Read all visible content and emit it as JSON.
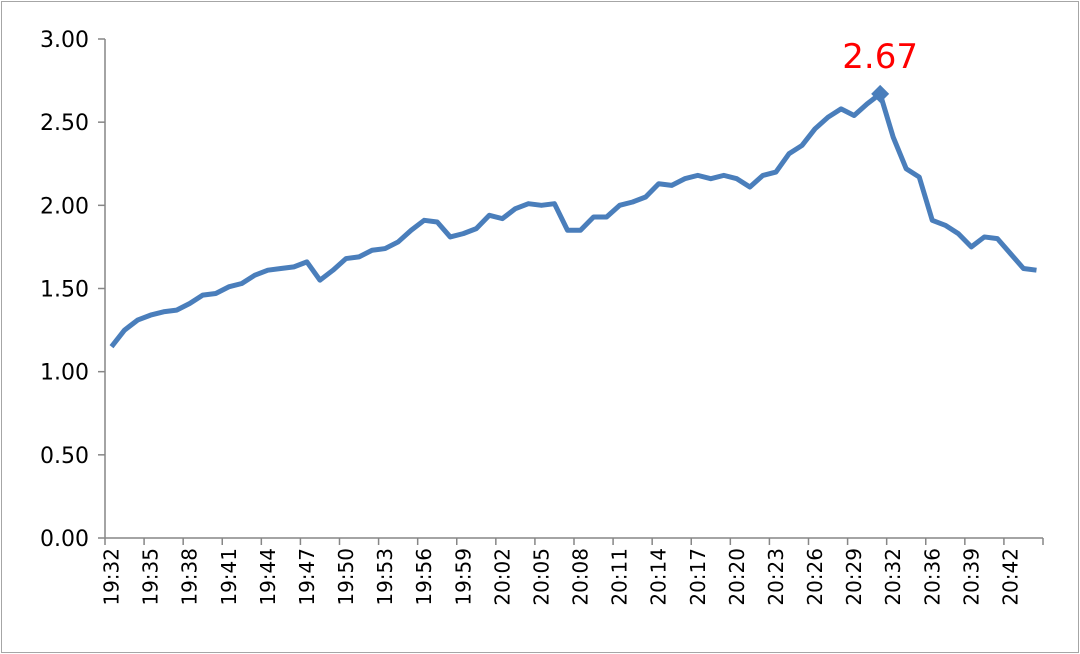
{
  "chart_data": {
    "type": "line",
    "categories": [
      "19:32",
      null,
      null,
      "19:35",
      null,
      null,
      "19:38",
      null,
      null,
      "19:41",
      null,
      null,
      "19:44",
      null,
      null,
      "19:47",
      null,
      null,
      "19:50",
      null,
      null,
      "19:53",
      null,
      null,
      "19:56",
      null,
      null,
      "19:59",
      null,
      null,
      "20:02",
      null,
      null,
      "20:05",
      null,
      null,
      "20:08",
      null,
      null,
      "20:11",
      null,
      null,
      "20:14",
      null,
      null,
      "20:17",
      null,
      null,
      "20:20",
      null,
      null,
      "20:23",
      null,
      null,
      "20:26",
      null,
      null,
      "20:29",
      null,
      null,
      "20:32",
      null,
      null,
      "20:36",
      null,
      null,
      "20:39",
      null,
      null,
      "20:42",
      null,
      null
    ],
    "series": [
      {
        "color": "#4a7ebb",
        "values": [
          1.15,
          1.25,
          1.31,
          1.34,
          1.36,
          1.37,
          1.41,
          1.46,
          1.47,
          1.51,
          1.53,
          1.58,
          1.61,
          1.62,
          1.63,
          1.66,
          1.55,
          1.61,
          1.68,
          1.69,
          1.73,
          1.74,
          1.78,
          1.85,
          1.91,
          1.9,
          1.81,
          1.83,
          1.86,
          1.94,
          1.92,
          1.98,
          2.01,
          2.0,
          2.01,
          1.85,
          1.85,
          1.93,
          1.93,
          2.0,
          2.02,
          2.05,
          2.13,
          2.12,
          2.16,
          2.18,
          2.16,
          2.18,
          2.16,
          2.11,
          2.18,
          2.2,
          2.31,
          2.36,
          2.46,
          2.53,
          2.58,
          2.54,
          2.61,
          2.67,
          2.41,
          2.22,
          2.17,
          1.91,
          1.88,
          1.83,
          1.75,
          1.81,
          1.8,
          1.71,
          1.62,
          1.61
        ],
        "value_labels": [
          null,
          null,
          null,
          null,
          null,
          null,
          null,
          null,
          null,
          null,
          null,
          null,
          null,
          null,
          null,
          null,
          null,
          null,
          null,
          null,
          null,
          null,
          null,
          null,
          null,
          null,
          null,
          null,
          null,
          null,
          null,
          null,
          null,
          null,
          null,
          null,
          null,
          null,
          null,
          null,
          null,
          null,
          null,
          null,
          null,
          null,
          null,
          null,
          null,
          null,
          null,
          null,
          null,
          null,
          null,
          null,
          null,
          null,
          null,
          "2.67",
          null,
          null,
          null,
          null,
          null,
          null,
          null,
          null,
          null,
          null,
          null,
          null
        ],
        "value_label_color": "#ff0000"
      }
    ],
    "ylim": [
      0,
      3
    ],
    "yticks": [
      {
        "value": 0,
        "label": "0.00"
      },
      {
        "value": 0.5,
        "label": "0.50"
      },
      {
        "value": 1,
        "label": "1.00"
      },
      {
        "value": 1.5,
        "label": "1.50"
      },
      {
        "value": 2,
        "label": "2.00"
      },
      {
        "value": 2.5,
        "label": "2.50"
      },
      {
        "value": 3,
        "label": "3.00"
      }
    ],
    "grid": false
  }
}
